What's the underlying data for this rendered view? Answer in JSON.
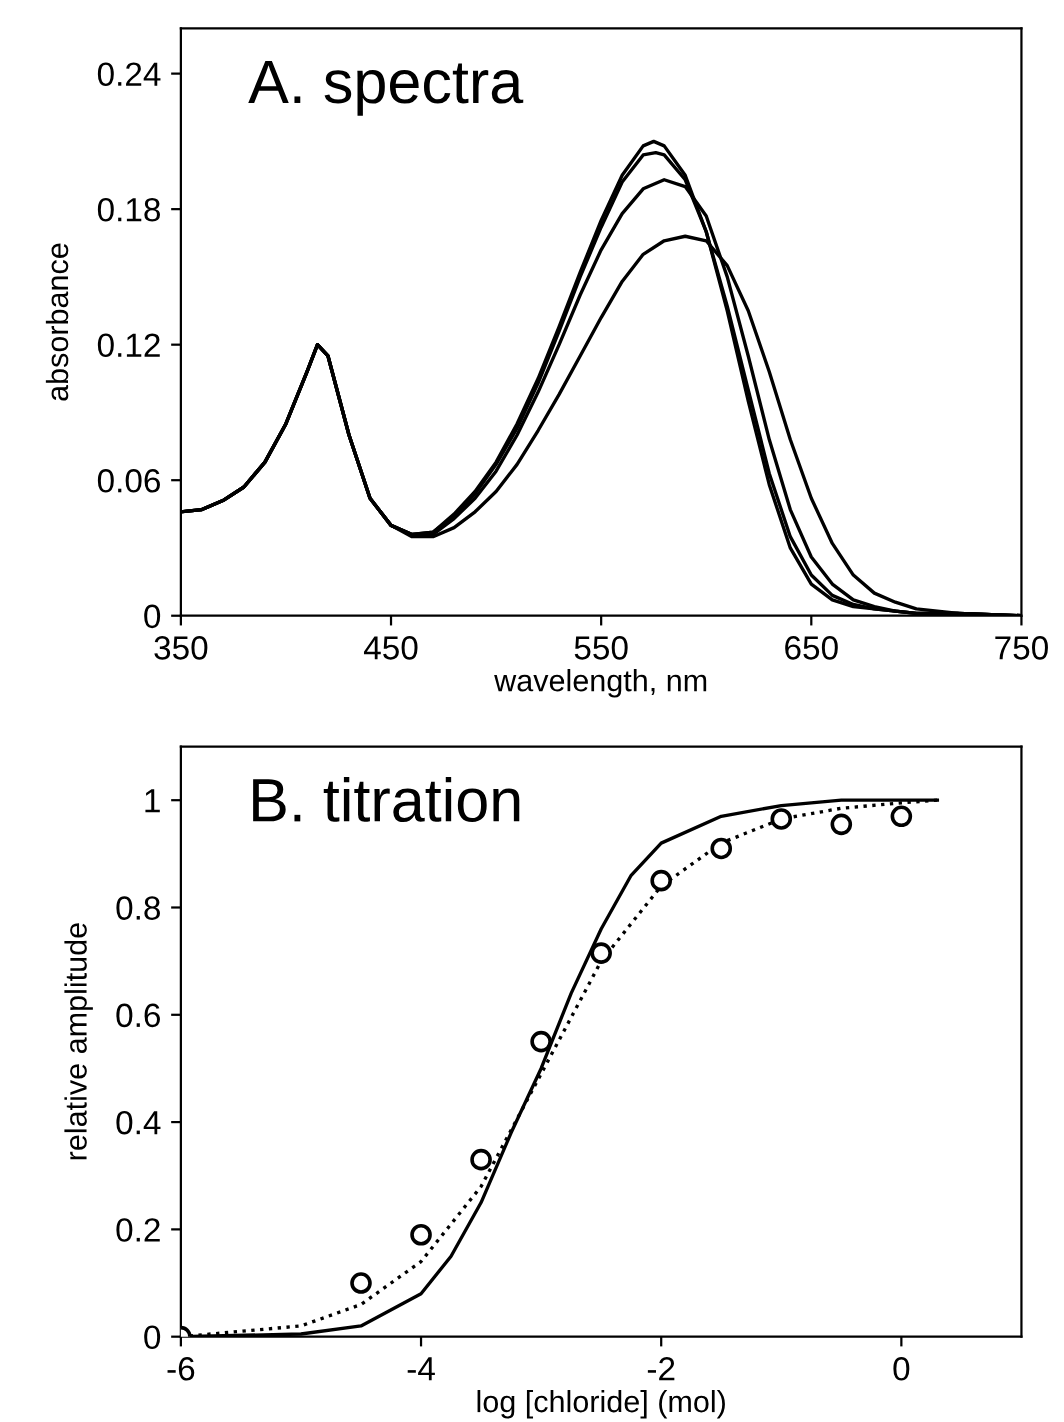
{
  "chart_data": [
    {
      "type": "line",
      "title": "A. spectra",
      "xlabel": "wavelength, nm",
      "ylabel": "absorbance",
      "xlim": [
        350,
        750
      ],
      "ylim": [
        0,
        0.26
      ],
      "xticks": [
        350,
        450,
        550,
        650,
        750
      ],
      "yticks": [
        0,
        0.06,
        0.12,
        0.18,
        0.24
      ],
      "grid": false,
      "legend": false,
      "series": [
        {
          "color": "#000000",
          "x": [
            350,
            360,
            370,
            380,
            390,
            400,
            410,
            415,
            420,
            430,
            440,
            450,
            460,
            470,
            480,
            490,
            500,
            510,
            520,
            530,
            540,
            550,
            560,
            570,
            575,
            580,
            590,
            600,
            610,
            620,
            630,
            640,
            650,
            660,
            670,
            680,
            690,
            700,
            720,
            750
          ],
          "values": [
            0.046,
            0.047,
            0.051,
            0.057,
            0.068,
            0.085,
            0.108,
            0.12,
            0.115,
            0.08,
            0.052,
            0.04,
            0.036,
            0.037,
            0.045,
            0.055,
            0.068,
            0.085,
            0.105,
            0.128,
            0.152,
            0.175,
            0.195,
            0.208,
            0.21,
            0.208,
            0.195,
            0.17,
            0.135,
            0.095,
            0.058,
            0.03,
            0.014,
            0.007,
            0.004,
            0.003,
            0.002,
            0.001,
            0.001,
            0
          ]
        },
        {
          "color": "#000000",
          "x": [
            350,
            360,
            370,
            380,
            390,
            400,
            410,
            415,
            420,
            430,
            440,
            450,
            460,
            470,
            480,
            490,
            500,
            510,
            520,
            530,
            540,
            550,
            560,
            570,
            576,
            580,
            590,
            600,
            610,
            620,
            630,
            640,
            650,
            660,
            670,
            680,
            690,
            700,
            720,
            750
          ],
          "values": [
            0.046,
            0.047,
            0.051,
            0.057,
            0.068,
            0.085,
            0.108,
            0.12,
            0.115,
            0.08,
            0.052,
            0.04,
            0.036,
            0.037,
            0.044,
            0.054,
            0.067,
            0.083,
            0.103,
            0.126,
            0.15,
            0.172,
            0.192,
            0.204,
            0.205,
            0.204,
            0.193,
            0.17,
            0.137,
            0.1,
            0.063,
            0.035,
            0.018,
            0.009,
            0.005,
            0.003,
            0.002,
            0.001,
            0.001,
            0
          ]
        },
        {
          "color": "#000000",
          "x": [
            350,
            360,
            370,
            380,
            390,
            400,
            410,
            415,
            420,
            430,
            440,
            450,
            460,
            470,
            480,
            490,
            500,
            510,
            520,
            530,
            540,
            550,
            560,
            570,
            580,
            590,
            600,
            610,
            620,
            630,
            640,
            650,
            660,
            670,
            680,
            690,
            700,
            720,
            750
          ],
          "values": [
            0.046,
            0.047,
            0.051,
            0.057,
            0.068,
            0.085,
            0.108,
            0.12,
            0.115,
            0.08,
            0.052,
            0.04,
            0.036,
            0.036,
            0.043,
            0.052,
            0.064,
            0.08,
            0.099,
            0.12,
            0.142,
            0.162,
            0.178,
            0.189,
            0.193,
            0.19,
            0.177,
            0.15,
            0.115,
            0.078,
            0.047,
            0.026,
            0.014,
            0.007,
            0.004,
            0.002,
            0.001,
            0.001,
            0
          ]
        },
        {
          "color": "#000000",
          "x": [
            350,
            360,
            370,
            380,
            390,
            400,
            410,
            415,
            420,
            430,
            440,
            450,
            460,
            470,
            480,
            490,
            500,
            510,
            520,
            530,
            540,
            550,
            560,
            570,
            580,
            590,
            600,
            610,
            620,
            630,
            640,
            650,
            660,
            670,
            680,
            690,
            700,
            720,
            750
          ],
          "values": [
            0.046,
            0.047,
            0.051,
            0.057,
            0.068,
            0.085,
            0.108,
            0.12,
            0.115,
            0.08,
            0.052,
            0.04,
            0.035,
            0.035,
            0.039,
            0.046,
            0.055,
            0.067,
            0.082,
            0.098,
            0.115,
            0.132,
            0.148,
            0.16,
            0.166,
            0.168,
            0.166,
            0.155,
            0.135,
            0.108,
            0.078,
            0.052,
            0.032,
            0.018,
            0.01,
            0.006,
            0.003,
            0.001,
            0
          ]
        }
      ]
    },
    {
      "type": "line",
      "title": "B. titration",
      "xlabel": "log [chloride] (mol)",
      "ylabel": "relative amplitude",
      "xlim": [
        -6,
        1
      ],
      "ylim": [
        0,
        1.1
      ],
      "xticks": [
        -6,
        -4,
        -2,
        0
      ],
      "yticks": [
        0,
        0.2,
        0.4,
        0.6,
        0.8,
        1
      ],
      "grid": false,
      "legend": false,
      "series": [
        {
          "type": "line",
          "line_style": "solid",
          "color": "#000000",
          "x": [
            -6,
            -5,
            -4.5,
            -4,
            -3.75,
            -3.5,
            -3.25,
            -3,
            -2.75,
            -2.5,
            -2.25,
            -2,
            -1.5,
            -1,
            -0.5,
            0,
            0.3
          ],
          "values": [
            0,
            0.005,
            0.02,
            0.08,
            0.15,
            0.25,
            0.38,
            0.5,
            0.64,
            0.76,
            0.86,
            0.92,
            0.97,
            0.99,
            1,
            1,
            1
          ]
        },
        {
          "type": "line",
          "line_style": "dotted",
          "color": "#000000",
          "x": [
            -6,
            -5,
            -4.5,
            -4,
            -3.5,
            -3,
            -2.5,
            -2,
            -1.5,
            -1,
            -0.5,
            0,
            0.3
          ],
          "values": [
            0,
            0.02,
            0.06,
            0.14,
            0.28,
            0.49,
            0.7,
            0.84,
            0.92,
            0.965,
            0.985,
            0.995,
            1
          ]
        },
        {
          "type": "scatter",
          "marker": "circle",
          "color": "#000000",
          "x": [
            -6,
            -4.5,
            -4,
            -3.5,
            -3,
            -2.5,
            -2,
            -1.5,
            -1,
            -0.5,
            0
          ],
          "values": [
            0,
            0.1,
            0.19,
            0.33,
            0.55,
            0.715,
            0.85,
            0.91,
            0.965,
            0.955,
            0.97
          ]
        }
      ]
    }
  ]
}
